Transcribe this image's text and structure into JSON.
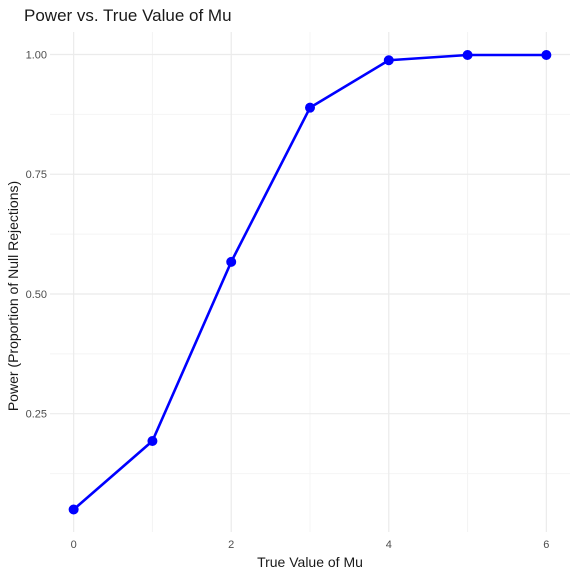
{
  "chart_data": {
    "type": "line",
    "title": "Power vs. True Value of Mu",
    "xlabel": "True Value of Mu",
    "ylabel": "Power (Proportion of Null Rejections)",
    "x": [
      0,
      1,
      2,
      3,
      4,
      5,
      6
    ],
    "series": [
      {
        "values": [
          0.05,
          0.193,
          0.567,
          0.889,
          0.988,
          0.999,
          0.999
        ]
      }
    ],
    "xlim": [
      -0.3,
      6.3
    ],
    "ylim": [
      0.003,
      1.047
    ],
    "x_ticks": [
      0,
      2,
      4,
      6
    ],
    "x_tick_labels": [
      "0",
      "2",
      "4",
      "6"
    ],
    "y_ticks": [
      0.25,
      0.5,
      0.75,
      1.0
    ],
    "y_tick_labels": [
      "0.25",
      "0.50",
      "0.75",
      "1.00"
    ],
    "grid": true,
    "line_color": "#0000ff",
    "grid_major_color": "#ebebeb",
    "grid_minor_color": "#f4f4f4",
    "background": "#ffffff"
  }
}
